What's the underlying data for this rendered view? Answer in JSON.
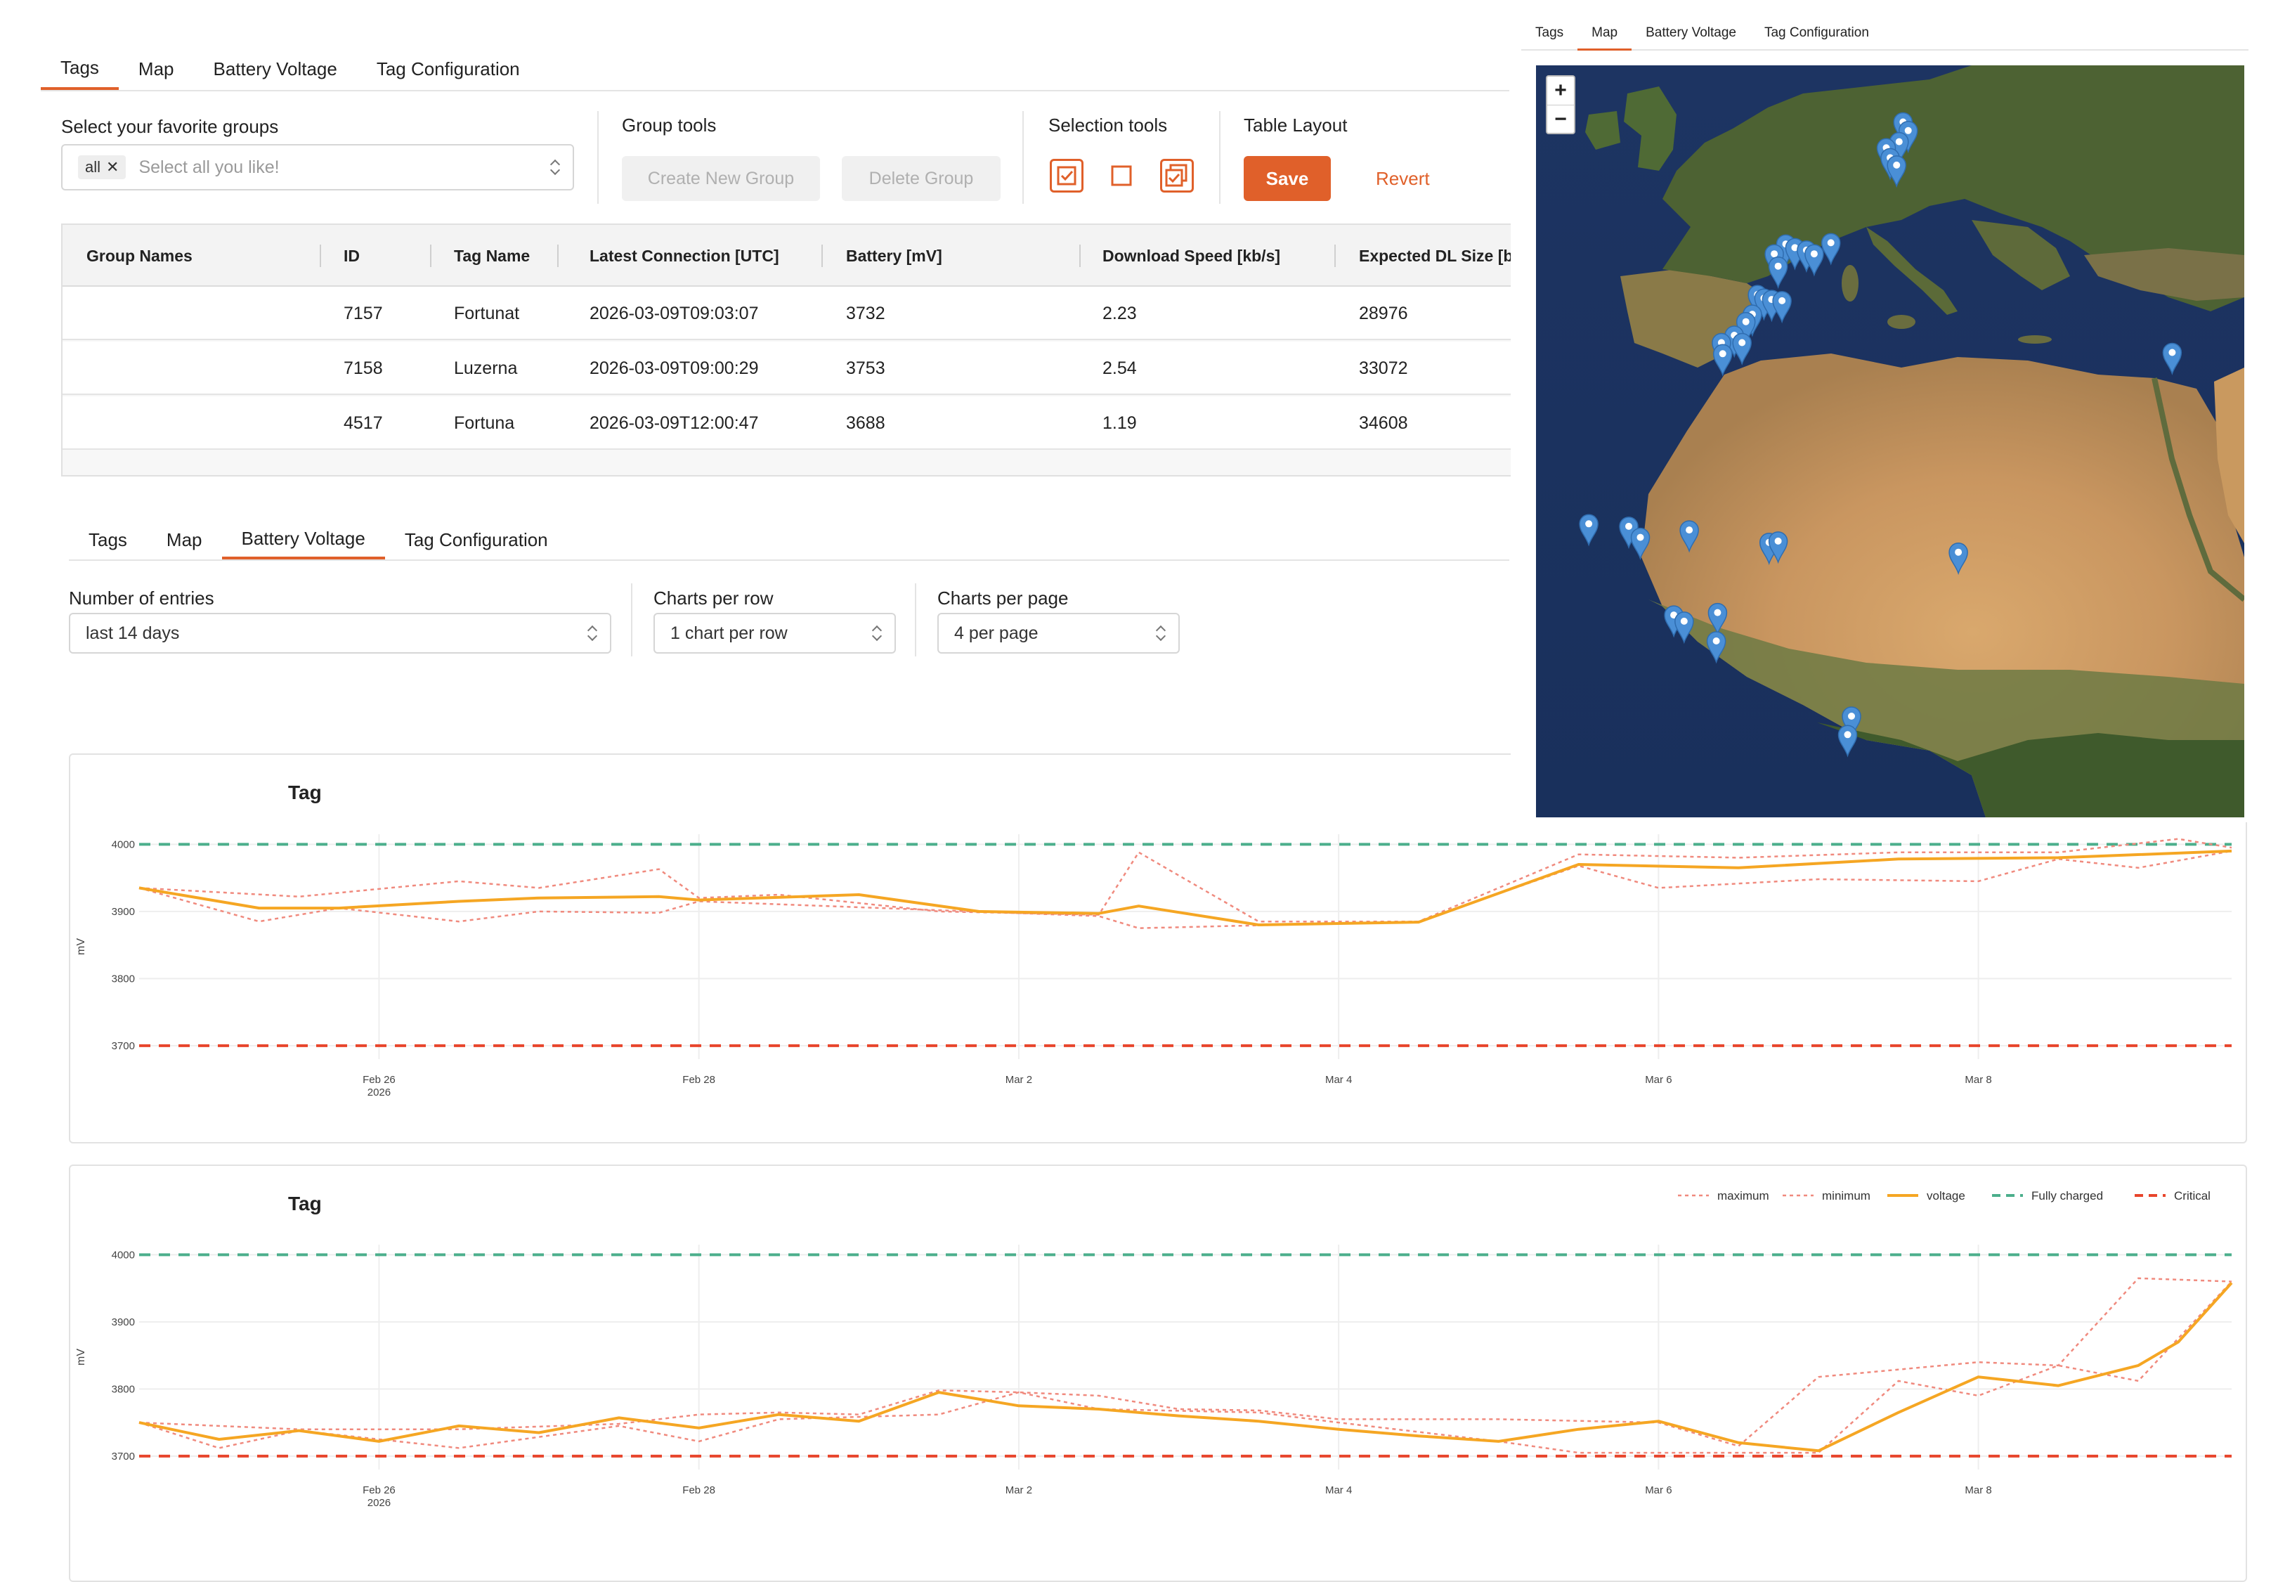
{
  "panel1": {
    "tabs": [
      "Tags",
      "Map",
      "Battery Voltage",
      "Tag Configuration"
    ],
    "active_tab": "Tags",
    "favorite_groups_label": "Select your favorite groups",
    "favorite_chip": "all",
    "favorite_placeholder": "Select all you like!",
    "group_tools_label": "Group tools",
    "create_group": "Create New Group",
    "delete_group": "Delete Group",
    "selection_tools_label": "Selection tools",
    "table_layout_label": "Table Layout",
    "save": "Save",
    "revert": "Revert",
    "table": {
      "columns": [
        "Group Names",
        "ID",
        "Tag Name",
        "Latest Connection [UTC]",
        "Battery [mV]",
        "Download Speed [kb/s]",
        "Expected DL Size [b]"
      ],
      "rows": [
        [
          "",
          "7157",
          "Fortunat",
          "2026-03-09T09:03:07",
          "3732",
          "2.23",
          "28976"
        ],
        [
          "",
          "7158",
          "Luzerna",
          "2026-03-09T09:00:29",
          "3753",
          "2.54",
          "33072"
        ],
        [
          "",
          "4517",
          "Fortuna",
          "2026-03-09T12:00:47",
          "3688",
          "1.19",
          "34608"
        ]
      ]
    }
  },
  "panel3": {
    "tabs": [
      "Tags",
      "Map",
      "Battery Voltage",
      "Tag Configuration"
    ],
    "active_tab": "Battery Voltage",
    "entries_label": "Number of entries",
    "entries_value": "last 14 days",
    "per_row_label": "Charts per row",
    "per_row_value": "1 chart per row",
    "per_page_label": "Charts per page",
    "per_page_value": "4 per page"
  },
  "map_panel": {
    "tabs": [
      "Tags",
      "Map",
      "Battery Voltage",
      "Tag Configuration"
    ],
    "active_tab": "Map",
    "zoom_in": "+",
    "zoom_out": "−",
    "marker_icon": "map-pin-icon",
    "marker_color": "#4a8fd6"
  },
  "colors": {
    "accent": "#e0602a",
    "voltage": "#f5a623",
    "min_max": "#f08a7e",
    "fully_charged": "#4caf8c",
    "critical": "#e8452c"
  },
  "chart_data": [
    {
      "type": "line",
      "title": "Tag",
      "ylabel": "mV",
      "ylim": [
        3680,
        4015
      ],
      "yticks": [
        3700,
        3800,
        3900,
        4000
      ],
      "xticks": [
        {
          "x": "2026-02-26",
          "label": "Feb 26",
          "sublabel": "2026"
        },
        {
          "x": "2026-02-28",
          "label": "Feb 28"
        },
        {
          "x": "2026-03-02",
          "label": "Mar 2"
        },
        {
          "x": "2026-03-04",
          "label": "Mar 4"
        },
        {
          "x": "2026-03-06",
          "label": "Mar 6"
        },
        {
          "x": "2026-03-08",
          "label": "Mar 8"
        }
      ],
      "xlim": [
        "2026-02-24T12:00",
        "2026-03-09T14:00"
      ],
      "legend": false,
      "thresholds": [
        {
          "name": "Fully charged",
          "value": 4000
        },
        {
          "name": "Critical",
          "value": 3700
        }
      ],
      "series": [
        {
          "name": "maximum",
          "style": "dotted",
          "points": [
            [
              "2026-02-24T12:00",
              3935
            ],
            [
              "2026-02-25T12:00",
              3922
            ],
            [
              "2026-02-26T12:00",
              3945
            ],
            [
              "2026-02-27T00:00",
              3935
            ],
            [
              "2026-02-27T18:00",
              3963
            ],
            [
              "2026-02-28T00:00",
              3920
            ],
            [
              "2026-02-28T12:00",
              3925
            ],
            [
              "2026-03-01T12:00",
              3900
            ],
            [
              "2026-03-02T12:00",
              3895
            ],
            [
              "2026-03-02T18:00",
              3988
            ],
            [
              "2026-03-03T12:00",
              3885
            ],
            [
              "2026-03-04T12:00",
              3885
            ],
            [
              "2026-03-05T12:00",
              3985
            ],
            [
              "2026-03-06T12:00",
              3980
            ],
            [
              "2026-03-07T12:00",
              3988
            ],
            [
              "2026-03-08T12:00",
              3988
            ],
            [
              "2026-03-09T06:00",
              4008
            ],
            [
              "2026-03-09T14:00",
              3995
            ]
          ]
        },
        {
          "name": "minimum",
          "style": "dotted",
          "points": [
            [
              "2026-02-24T12:00",
              3935
            ],
            [
              "2026-02-25T06:00",
              3885
            ],
            [
              "2026-02-25T18:00",
              3905
            ],
            [
              "2026-02-26T12:00",
              3885
            ],
            [
              "2026-02-27T00:00",
              3900
            ],
            [
              "2026-02-27T18:00",
              3898
            ],
            [
              "2026-02-28T00:00",
              3915
            ],
            [
              "2026-03-02T12:00",
              3893
            ],
            [
              "2026-03-02T18:00",
              3875
            ],
            [
              "2026-03-04T12:00",
              3885
            ],
            [
              "2026-03-05T12:00",
              3968
            ],
            [
              "2026-03-06T00:00",
              3935
            ],
            [
              "2026-03-07T00:00",
              3948
            ],
            [
              "2026-03-08T00:00",
              3945
            ],
            [
              "2026-03-08T12:00",
              3978
            ],
            [
              "2026-03-09T00:00",
              3965
            ],
            [
              "2026-03-09T14:00",
              3990
            ]
          ]
        },
        {
          "name": "voltage",
          "style": "solid",
          "points": [
            [
              "2026-02-24T12:00",
              3935
            ],
            [
              "2026-02-25T06:00",
              3905
            ],
            [
              "2026-02-25T18:00",
              3905
            ],
            [
              "2026-02-26T12:00",
              3915
            ],
            [
              "2026-02-27T00:00",
              3920
            ],
            [
              "2026-02-27T18:00",
              3922
            ],
            [
              "2026-02-28T00:00",
              3917
            ],
            [
              "2026-03-01T00:00",
              3925
            ],
            [
              "2026-03-01T18:00",
              3900
            ],
            [
              "2026-03-02T12:00",
              3897
            ],
            [
              "2026-03-02T18:00",
              3908
            ],
            [
              "2026-03-03T12:00",
              3880
            ],
            [
              "2026-03-04T12:00",
              3884
            ],
            [
              "2026-03-05T12:00",
              3970
            ],
            [
              "2026-03-06T12:00",
              3965
            ],
            [
              "2026-03-07T12:00",
              3978
            ],
            [
              "2026-03-08T12:00",
              3980
            ],
            [
              "2026-03-09T14:00",
              3990
            ]
          ]
        }
      ]
    },
    {
      "type": "line",
      "title": "Tag",
      "ylabel": "mV",
      "ylim": [
        3680,
        4015
      ],
      "yticks": [
        3700,
        3800,
        3900,
        4000
      ],
      "xticks": [
        {
          "x": "2026-02-26",
          "label": "Feb 26",
          "sublabel": "2026"
        },
        {
          "x": "2026-02-28",
          "label": "Feb 28"
        },
        {
          "x": "2026-03-02",
          "label": "Mar 2"
        },
        {
          "x": "2026-03-04",
          "label": "Mar 4"
        },
        {
          "x": "2026-03-06",
          "label": "Mar 6"
        },
        {
          "x": "2026-03-08",
          "label": "Mar 8"
        }
      ],
      "xlim": [
        "2026-02-24T12:00",
        "2026-03-09T14:00"
      ],
      "legend": true,
      "legend_position": "top-right",
      "legend_entries": [
        "maximum",
        "minimum",
        "voltage",
        "Fully charged",
        "Critical"
      ],
      "thresholds": [
        {
          "name": "Fully charged",
          "value": 4000
        },
        {
          "name": "Critical",
          "value": 3700
        }
      ],
      "series": [
        {
          "name": "maximum",
          "style": "dotted",
          "points": [
            [
              "2026-02-24T12:00",
              3750
            ],
            [
              "2026-02-25T12:00",
              3740
            ],
            [
              "2026-02-26T12:00",
              3740
            ],
            [
              "2026-02-27T12:00",
              3748
            ],
            [
              "2026-02-28T00:00",
              3762
            ],
            [
              "2026-02-28T12:00",
              3765
            ],
            [
              "2026-03-01T00:00",
              3762
            ],
            [
              "2026-03-01T12:00",
              3798
            ],
            [
              "2026-03-02T00:00",
              3795
            ],
            [
              "2026-03-02T12:00",
              3790
            ],
            [
              "2026-03-03T00:00",
              3770
            ],
            [
              "2026-03-03T12:00",
              3768
            ],
            [
              "2026-03-04T00:00",
              3755
            ],
            [
              "2026-03-05T00:00",
              3755
            ],
            [
              "2026-03-06T00:00",
              3750
            ],
            [
              "2026-03-06T12:00",
              3715
            ],
            [
              "2026-03-07T00:00",
              3818
            ],
            [
              "2026-03-08T00:00",
              3840
            ],
            [
              "2026-03-08T12:00",
              3835
            ],
            [
              "2026-03-09T00:00",
              3965
            ],
            [
              "2026-03-09T14:00",
              3960
            ]
          ]
        },
        {
          "name": "minimum",
          "style": "dotted",
          "points": [
            [
              "2026-02-24T12:00",
              3750
            ],
            [
              "2026-02-25T00:00",
              3712
            ],
            [
              "2026-02-25T12:00",
              3738
            ],
            [
              "2026-02-26T12:00",
              3712
            ],
            [
              "2026-02-27T12:00",
              3745
            ],
            [
              "2026-02-28T00:00",
              3722
            ],
            [
              "2026-02-28T12:00",
              3755
            ],
            [
              "2026-03-01T12:00",
              3762
            ],
            [
              "2026-03-02T00:00",
              3795
            ],
            [
              "2026-03-02T12:00",
              3770
            ],
            [
              "2026-03-03T12:00",
              3765
            ],
            [
              "2026-03-04T00:00",
              3750
            ],
            [
              "2026-03-05T00:00",
              3722
            ],
            [
              "2026-03-05T12:00",
              3705
            ],
            [
              "2026-03-06T12:00",
              3705
            ],
            [
              "2026-03-07T00:00",
              3705
            ],
            [
              "2026-03-07T12:00",
              3812
            ],
            [
              "2026-03-08T00:00",
              3790
            ],
            [
              "2026-03-08T12:00",
              3835
            ],
            [
              "2026-03-09T00:00",
              3812
            ],
            [
              "2026-03-09T14:00",
              3960
            ]
          ]
        },
        {
          "name": "voltage",
          "style": "solid",
          "points": [
            [
              "2026-02-24T12:00",
              3750
            ],
            [
              "2026-02-25T00:00",
              3725
            ],
            [
              "2026-02-25T12:00",
              3738
            ],
            [
              "2026-02-26T00:00",
              3722
            ],
            [
              "2026-02-26T12:00",
              3745
            ],
            [
              "2026-02-27T00:00",
              3735
            ],
            [
              "2026-02-27T12:00",
              3757
            ],
            [
              "2026-02-28T00:00",
              3742
            ],
            [
              "2026-02-28T12:00",
              3762
            ],
            [
              "2026-03-01T00:00",
              3752
            ],
            [
              "2026-03-01T12:00",
              3795
            ],
            [
              "2026-03-02T00:00",
              3775
            ],
            [
              "2026-03-02T12:00",
              3770
            ],
            [
              "2026-03-03T00:00",
              3760
            ],
            [
              "2026-03-03T12:00",
              3752
            ],
            [
              "2026-03-04T00:00",
              3740
            ],
            [
              "2026-03-04T12:00",
              3730
            ],
            [
              "2026-03-05T00:00",
              3722
            ],
            [
              "2026-03-05T12:00",
              3740
            ],
            [
              "2026-03-06T00:00",
              3752
            ],
            [
              "2026-03-06T12:00",
              3720
            ],
            [
              "2026-03-07T00:00",
              3708
            ],
            [
              "2026-03-07T12:00",
              3765
            ],
            [
              "2026-03-08T00:00",
              3818
            ],
            [
              "2026-03-08T12:00",
              3805
            ],
            [
              "2026-03-09T00:00",
              3835
            ],
            [
              "2026-03-09T06:00",
              3870
            ],
            [
              "2026-03-09T14:00",
              3958
            ]
          ]
        }
      ]
    }
  ],
  "markers": [
    {
      "lon": 8.5,
      "lat": 51.7
    },
    {
      "lon": 8.9,
      "lat": 51.0
    },
    {
      "lon": 8.2,
      "lat": 50.1
    },
    {
      "lon": 7.2,
      "lat": 49.6
    },
    {
      "lon": 7.5,
      "lat": 48.8
    },
    {
      "lon": 8.0,
      "lat": 48.2
    },
    {
      "lon": -0.6,
      "lat": 41.8
    },
    {
      "lon": 0.1,
      "lat": 41.5
    },
    {
      "lon": 1.0,
      "lat": 41.3
    },
    {
      "lon": 1.6,
      "lat": 41.0
    },
    {
      "lon": 2.9,
      "lat": 41.9
    },
    {
      "lon": -1.5,
      "lat": 41.0
    },
    {
      "lon": -1.2,
      "lat": 40.0
    },
    {
      "lon": -2.8,
      "lat": 37.7
    },
    {
      "lon": -2.3,
      "lat": 37.4
    },
    {
      "lon": -1.7,
      "lat": 37.3
    },
    {
      "lon": -0.9,
      "lat": 37.2
    },
    {
      "lon": -3.2,
      "lat": 36.1
    },
    {
      "lon": -3.7,
      "lat": 35.5
    },
    {
      "lon": -4.6,
      "lat": 34.4
    },
    {
      "lon": -5.6,
      "lat": 33.8
    },
    {
      "lon": -4.0,
      "lat": 33.8
    },
    {
      "lon": -5.5,
      "lat": 32.9
    },
    {
      "lon": 29.4,
      "lat": 33.0
    },
    {
      "lon": -15.9,
      "lat": 19.1
    },
    {
      "lon": -12.8,
      "lat": 18.9
    },
    {
      "lon": -11.9,
      "lat": 18.0
    },
    {
      "lon": -8.1,
      "lat": 18.6
    },
    {
      "lon": -1.9,
      "lat": 17.6
    },
    {
      "lon": -1.2,
      "lat": 17.7
    },
    {
      "lon": 12.8,
      "lat": 16.8
    },
    {
      "lon": -9.3,
      "lat": 11.7
    },
    {
      "lon": -8.5,
      "lat": 11.2
    },
    {
      "lon": -5.9,
      "lat": 11.9
    },
    {
      "lon": -6.0,
      "lat": 9.6
    },
    {
      "lon": 4.5,
      "lat": 3.5
    },
    {
      "lon": 4.2,
      "lat": 2.0
    }
  ]
}
